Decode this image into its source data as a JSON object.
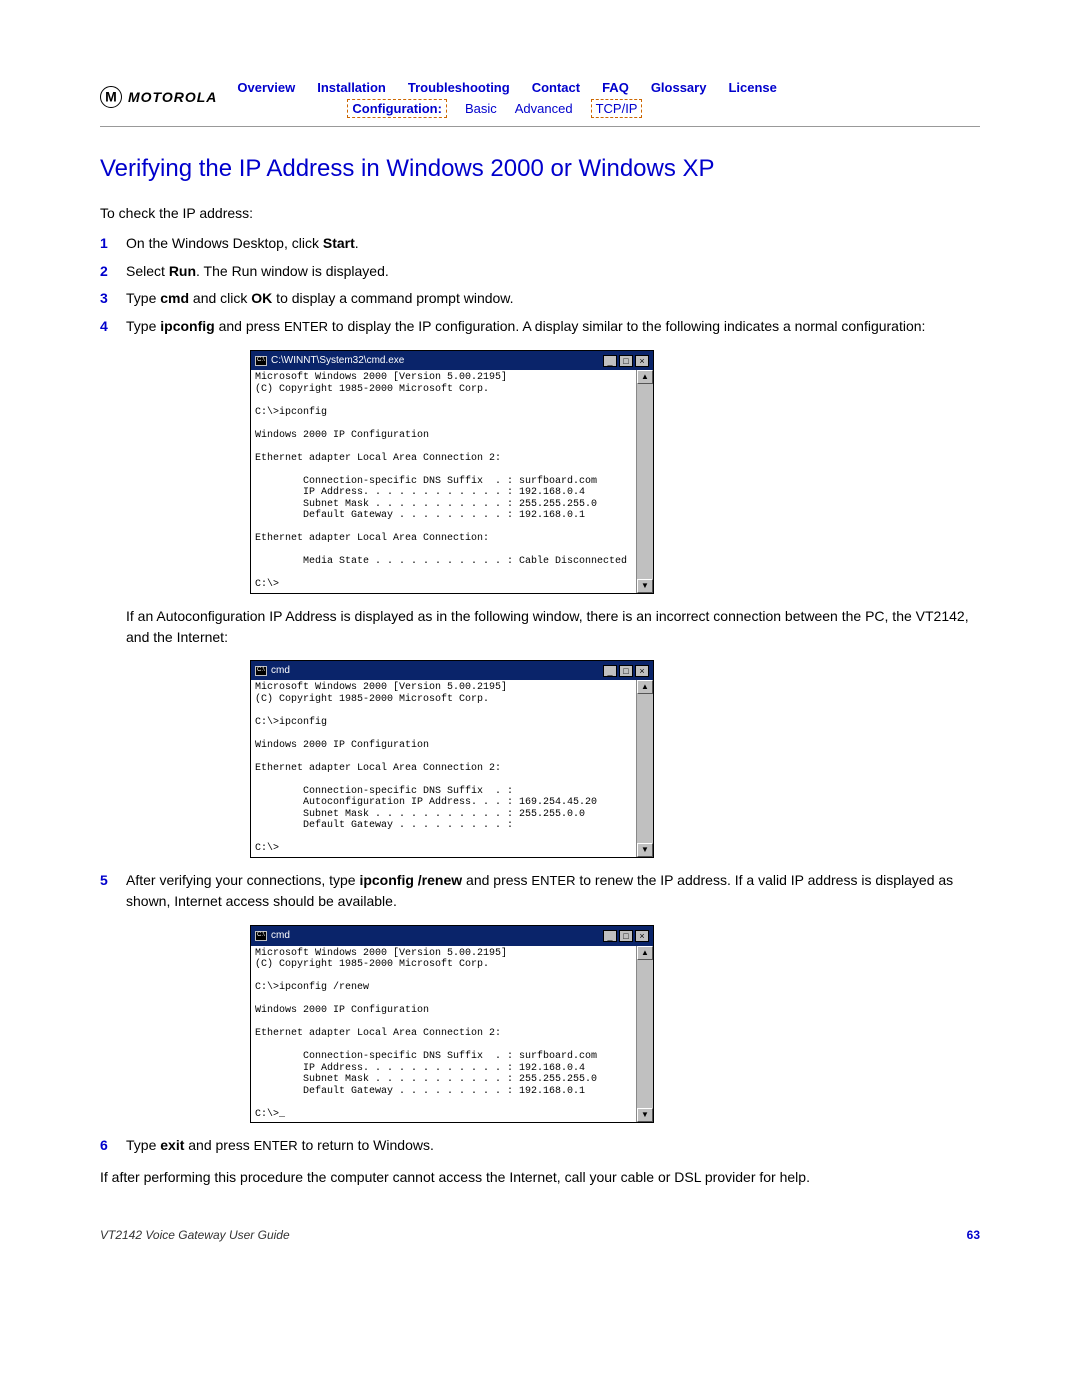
{
  "logo_text": "MOTOROLA",
  "nav": {
    "row1": [
      "Overview",
      "Installation",
      "Troubleshooting",
      "Contact",
      "FAQ",
      "Glossary",
      "License"
    ],
    "config_label": "Configuration:",
    "basic": "Basic",
    "advanced": "Advanced",
    "tcpip": "TCP/IP"
  },
  "title": "Verifying the IP Address in Windows 2000 or Windows XP",
  "intro": "To check the IP address:",
  "steps": {
    "s1": {
      "num": "1",
      "pre": "On the Windows Desktop, click ",
      "b1": "Start",
      "post": "."
    },
    "s2": {
      "num": "2",
      "pre": "Select ",
      "b1": "Run",
      "post": ". The Run window is displayed."
    },
    "s3": {
      "num": "3",
      "pre": "Type ",
      "b1": "cmd",
      "mid": " and click ",
      "b2": "OK",
      "post": " to display a command prompt window."
    },
    "s4": {
      "num": "4",
      "pre": "Type ",
      "b1": "ipconfig",
      "mid": " and press ",
      "enter": "ENTER",
      "post": " to display the IP configuration. A display similar to the following indicates a normal configuration:"
    },
    "s5": {
      "num": "5",
      "pre": "After verifying your connections, type ",
      "b1": "ipconfig /renew",
      "mid": " and press ",
      "enter": "ENTER",
      "post": " to renew the IP address. If a valid IP address is displayed as shown, Internet access should be available."
    },
    "s6": {
      "num": "6",
      "pre": "Type ",
      "b1": "exit",
      "mid": " and press ",
      "enter": "ENTER",
      "post": " to return to Windows."
    }
  },
  "para_mid": "If an Autoconfiguration IP Address is displayed as in the following window, there is an incorrect connection between the PC, the VT2142, and the Internet:",
  "para_end": "If after performing this procedure the computer cannot access the Internet, call your cable or DSL provider for help.",
  "cmd1": {
    "title": "C:\\WINNT\\System32\\cmd.exe",
    "body": "Microsoft Windows 2000 [Version 5.00.2195]\n(C) Copyright 1985-2000 Microsoft Corp.\n\nC:\\>ipconfig\n\nWindows 2000 IP Configuration\n\nEthernet adapter Local Area Connection 2:\n\n        Connection-specific DNS Suffix  . : surfboard.com\n        IP Address. . . . . . . . . . . . : 192.168.0.4\n        Subnet Mask . . . . . . . . . . . : 255.255.255.0\n        Default Gateway . . . . . . . . . : 192.168.0.1\n\nEthernet adapter Local Area Connection:\n\n        Media State . . . . . . . . . . . : Cable Disconnected\n\nC:\\>"
  },
  "cmd2": {
    "title": "cmd",
    "body": "Microsoft Windows 2000 [Version 5.00.2195]\n(C) Copyright 1985-2000 Microsoft Corp.\n\nC:\\>ipconfig\n\nWindows 2000 IP Configuration\n\nEthernet adapter Local Area Connection 2:\n\n        Connection-specific DNS Suffix  . :\n        Autoconfiguration IP Address. . . : 169.254.45.20\n        Subnet Mask . . . . . . . . . . . : 255.255.0.0\n        Default Gateway . . . . . . . . . :\n\nC:\\>"
  },
  "cmd3": {
    "title": "cmd",
    "body": "Microsoft Windows 2000 [Version 5.00.2195]\n(C) Copyright 1985-2000 Microsoft Corp.\n\nC:\\>ipconfig /renew\n\nWindows 2000 IP Configuration\n\nEthernet adapter Local Area Connection 2:\n\n        Connection-specific DNS Suffix  . : surfboard.com\n        IP Address. . . . . . . . . . . . : 192.168.0.4\n        Subnet Mask . . . . . . . . . . . : 255.255.255.0\n        Default Gateway . . . . . . . . . : 192.168.0.1\n\nC:\\>_"
  },
  "footer": {
    "guide": "VT2142 Voice Gateway User Guide",
    "page": "63"
  },
  "colors": {
    "link": "#0000cc",
    "dashed_border": "#cc6600",
    "titlebar": "#0a246a",
    "scrollbar": "#c0c0c0"
  }
}
